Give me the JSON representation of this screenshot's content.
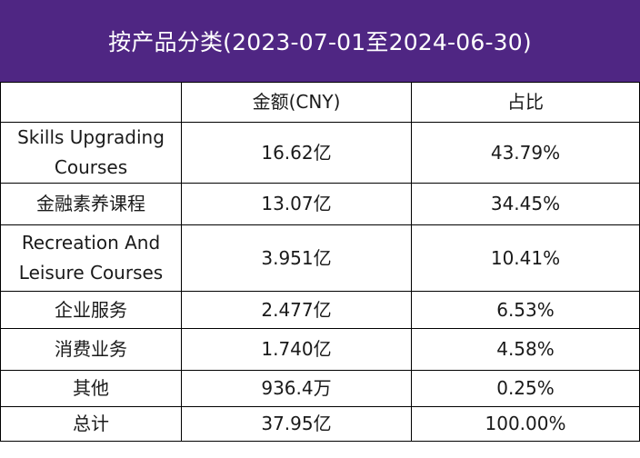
{
  "title": "按产品分类(2023-07-01至2024-06-30)",
  "colors": {
    "title_background": "#4f2683",
    "title_text": "#ffffff",
    "border": "#000000",
    "text": "#1a1a1a"
  },
  "chart_data": {
    "type": "table",
    "title": "按产品分类(2023-07-01至2024-06-30)",
    "columns": [
      "",
      "金额(CNY)",
      "占比"
    ],
    "rows": [
      {
        "category": "Skills Upgrading Courses",
        "amount": "16.62亿",
        "share": "43.79%"
      },
      {
        "category": "金融素养课程",
        "amount": "13.07亿",
        "share": "34.45%"
      },
      {
        "category": "Recreation And Leisure Courses",
        "amount": "3.951亿",
        "share": "10.41%"
      },
      {
        "category": "企业服务",
        "amount": "2.477亿",
        "share": "6.53%"
      },
      {
        "category": "消费业务",
        "amount": "1.740亿",
        "share": "4.58%"
      },
      {
        "category": "其他",
        "amount": "936.4万",
        "share": "0.25%"
      },
      {
        "category": "总计",
        "amount": "37.95亿",
        "share": "100.00%"
      }
    ]
  }
}
